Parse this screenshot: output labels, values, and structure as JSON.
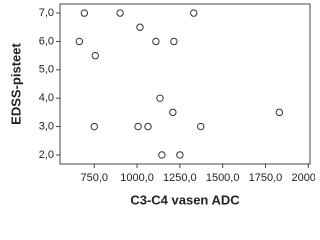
{
  "chart_data": {
    "type": "scatter",
    "x_label": "C3-C4 vasen ADC",
    "y_label": "EDSS-pisteet",
    "x": [
      692,
      901,
      1331,
      663,
      1017,
      1110,
      1215,
      756,
      1134,
      1209,
      1831,
      750,
      1006,
      1064,
      1372,
      1145,
      1250
    ],
    "values": [
      7,
      7,
      7,
      6,
      6.5,
      6,
      6,
      5.5,
      4,
      3.5,
      3.5,
      3,
      3,
      3,
      3,
      2,
      2
    ],
    "color": "#333333",
    "xlim": [
      550,
      2010
    ],
    "ylim": [
      1.68,
      7.32
    ],
    "xticks": [
      {
        "value": 750,
        "label": "750,0"
      },
      {
        "value": 1000,
        "label": "1000,0"
      },
      {
        "value": 1250,
        "label": "1250,0"
      },
      {
        "value": 1500,
        "label": "1500,0"
      },
      {
        "value": 1750,
        "label": "1750,0"
      },
      {
        "value": 2000,
        "label": "2000,0"
      }
    ],
    "yticks": [
      {
        "value": 2,
        "label": "2,0"
      },
      {
        "value": 3,
        "label": "3,0"
      },
      {
        "value": 4,
        "label": "4,0"
      },
      {
        "value": 5,
        "label": "5,0"
      },
      {
        "value": 6,
        "label": "6,0"
      },
      {
        "value": 7,
        "label": "7,0"
      }
    ]
  }
}
